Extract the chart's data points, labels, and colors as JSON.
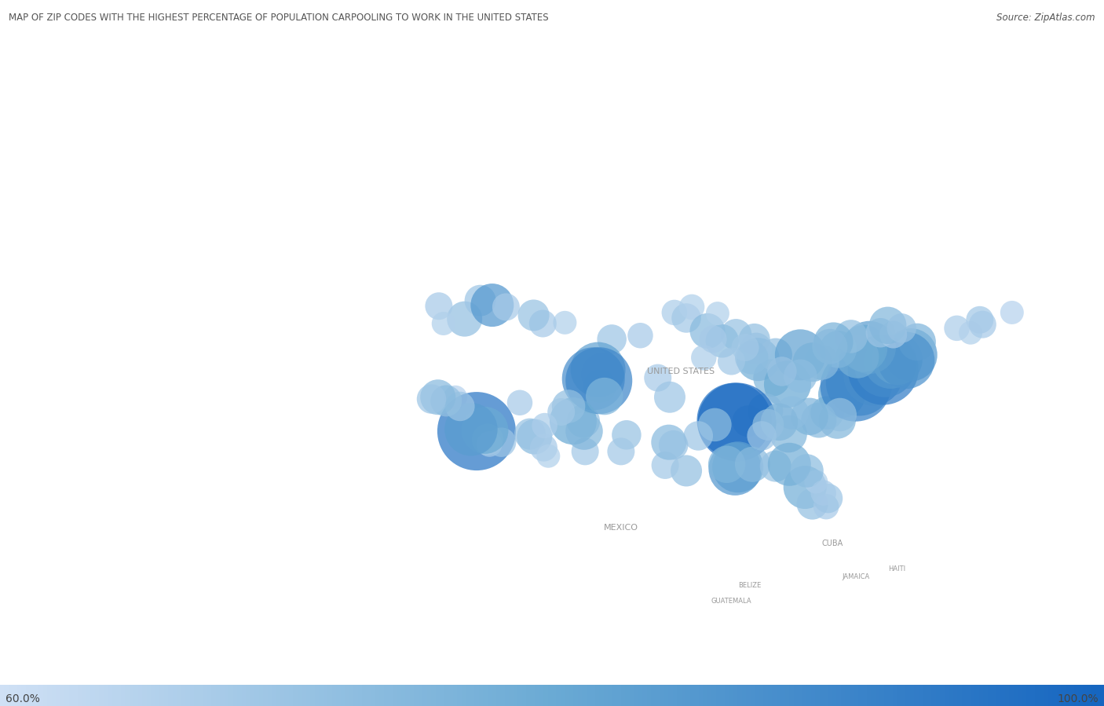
{
  "title": "MAP OF ZIP CODES WITH THE HIGHEST PERCENTAGE OF POPULATION CARPOOLING TO WORK IN THE UNITED STATES",
  "source": "Source: ZipAtlas.com",
  "colorbar_min": "60.0%",
  "colorbar_max": "100.0%",
  "background_color": "#dce5ed",
  "land_color": "#f0f0f0",
  "water_color": "#dce5ed",
  "border_color": "#bbbbbb",
  "title_color": "#555555",
  "label_color": "#999999",
  "colorbar_color_low": "#cfe0f5",
  "colorbar_color_mid": "#6aaad4",
  "colorbar_color_high": "#1565c0",
  "map_extent": [
    -170,
    -50,
    13,
    72
  ],
  "dots": [
    {
      "lon": -119.5,
      "lat": 46.2,
      "pct": 0.72,
      "size": 18
    },
    {
      "lon": -117.8,
      "lat": 48.2,
      "pct": 0.7,
      "size": 16
    },
    {
      "lon": -116.5,
      "lat": 47.7,
      "pct": 0.85,
      "size": 22
    },
    {
      "lon": -115.0,
      "lat": 47.5,
      "pct": 0.68,
      "size": 14
    },
    {
      "lon": -120.5,
      "lat": 37.7,
      "pct": 0.65,
      "size": 12
    },
    {
      "lon": -118.2,
      "lat": 34.0,
      "pct": 0.95,
      "size": 40
    },
    {
      "lon": -117.0,
      "lat": 33.1,
      "pct": 0.72,
      "size": 16
    },
    {
      "lon": -116.8,
      "lat": 32.6,
      "pct": 0.68,
      "size": 13
    },
    {
      "lon": -115.5,
      "lat": 32.8,
      "pct": 0.7,
      "size": 15
    },
    {
      "lon": -111.9,
      "lat": 33.4,
      "pct": 0.74,
      "size": 18
    },
    {
      "lon": -112.4,
      "lat": 33.7,
      "pct": 0.71,
      "size": 16
    },
    {
      "lon": -110.9,
      "lat": 32.2,
      "pct": 0.68,
      "size": 14
    },
    {
      "lon": -106.6,
      "lat": 35.1,
      "pct": 0.72,
      "size": 17
    },
    {
      "lon": -106.4,
      "lat": 31.8,
      "pct": 0.69,
      "size": 14
    },
    {
      "lon": -104.8,
      "lat": 38.9,
      "pct": 0.73,
      "size": 17
    },
    {
      "lon": -103.5,
      "lat": 44.0,
      "pct": 0.7,
      "size": 15
    },
    {
      "lon": -105.0,
      "lat": 40.7,
      "pct": 0.82,
      "size": 28
    },
    {
      "lon": -104.5,
      "lat": 40.2,
      "pct": 0.78,
      "size": 22
    },
    {
      "lon": -105.5,
      "lat": 39.7,
      "pct": 0.88,
      "size": 32
    },
    {
      "lon": -104.9,
      "lat": 39.5,
      "pct": 0.9,
      "size": 34
    },
    {
      "lon": -104.3,
      "lat": 37.8,
      "pct": 0.76,
      "size": 19
    },
    {
      "lon": -98.5,
      "lat": 39.8,
      "pct": 0.68,
      "size": 14
    },
    {
      "lon": -97.2,
      "lat": 37.7,
      "pct": 0.7,
      "size": 16
    },
    {
      "lon": -96.7,
      "lat": 46.9,
      "pct": 0.67,
      "size": 13
    },
    {
      "lon": -95.4,
      "lat": 46.3,
      "pct": 0.69,
      "size": 15
    },
    {
      "lon": -94.8,
      "lat": 47.5,
      "pct": 0.66,
      "size": 13
    },
    {
      "lon": -93.1,
      "lat": 44.9,
      "pct": 0.74,
      "size": 18
    },
    {
      "lon": -90.0,
      "lat": 44.5,
      "pct": 0.71,
      "size": 16
    },
    {
      "lon": -91.5,
      "lat": 43.8,
      "pct": 0.73,
      "size": 17
    },
    {
      "lon": -88.0,
      "lat": 44.0,
      "pct": 0.72,
      "size": 16
    },
    {
      "lon": -87.6,
      "lat": 41.8,
      "pct": 0.78,
      "size": 22
    },
    {
      "lon": -86.1,
      "lat": 39.8,
      "pct": 0.75,
      "size": 19
    },
    {
      "lon": -85.7,
      "lat": 42.3,
      "pct": 0.72,
      "size": 17
    },
    {
      "lon": -84.4,
      "lat": 39.1,
      "pct": 0.8,
      "size": 24
    },
    {
      "lon": -83.0,
      "lat": 42.3,
      "pct": 0.82,
      "size": 26
    },
    {
      "lon": -84.3,
      "lat": 33.7,
      "pct": 0.75,
      "size": 19
    },
    {
      "lon": -82.5,
      "lat": 27.9,
      "pct": 0.78,
      "size": 22
    },
    {
      "lon": -81.7,
      "lat": 26.1,
      "pct": 0.72,
      "size": 16
    },
    {
      "lon": -80.2,
      "lat": 25.8,
      "pct": 0.68,
      "size": 13
    },
    {
      "lon": -80.0,
      "lat": 26.7,
      "pct": 0.7,
      "size": 15
    },
    {
      "lon": -81.3,
      "lat": 28.5,
      "pct": 0.66,
      "size": 12
    },
    {
      "lon": -80.1,
      "lat": 36.0,
      "pct": 0.73,
      "size": 17
    },
    {
      "lon": -79.0,
      "lat": 35.2,
      "pct": 0.75,
      "size": 19
    },
    {
      "lon": -78.5,
      "lat": 38.0,
      "pct": 0.8,
      "size": 24
    },
    {
      "lon": -77.0,
      "lat": 38.9,
      "pct": 0.92,
      "size": 36
    },
    {
      "lon": -76.6,
      "lat": 39.3,
      "pct": 0.9,
      "size": 34
    },
    {
      "lon": -75.1,
      "lat": 40.0,
      "pct": 0.88,
      "size": 30
    },
    {
      "lon": -74.0,
      "lat": 40.7,
      "pct": 0.93,
      "size": 36
    },
    {
      "lon": -73.8,
      "lat": 41.0,
      "pct": 0.89,
      "size": 31
    },
    {
      "lon": -73.2,
      "lat": 41.5,
      "pct": 0.85,
      "size": 27
    },
    {
      "lon": -72.5,
      "lat": 41.8,
      "pct": 0.82,
      "size": 26
    },
    {
      "lon": -71.0,
      "lat": 42.3,
      "pct": 0.84,
      "size": 27
    },
    {
      "lon": -70.3,
      "lat": 43.7,
      "pct": 0.76,
      "size": 19
    },
    {
      "lon": -71.5,
      "lat": 41.7,
      "pct": 0.87,
      "size": 29
    },
    {
      "lon": -75.5,
      "lat": 43.1,
      "pct": 0.83,
      "size": 27
    },
    {
      "lon": -76.1,
      "lat": 43.0,
      "pct": 0.8,
      "size": 24
    },
    {
      "lon": -76.8,
      "lat": 42.1,
      "pct": 0.78,
      "size": 22
    },
    {
      "lon": -78.9,
      "lat": 42.9,
      "pct": 0.76,
      "size": 19
    },
    {
      "lon": -80.7,
      "lat": 41.5,
      "pct": 0.74,
      "size": 18
    },
    {
      "lon": -81.7,
      "lat": 41.5,
      "pct": 0.77,
      "size": 20
    },
    {
      "lon": -83.0,
      "lat": 40.0,
      "pct": 0.73,
      "size": 17
    },
    {
      "lon": -85.0,
      "lat": 40.5,
      "pct": 0.71,
      "size": 15
    },
    {
      "lon": -86.8,
      "lat": 36.2,
      "pct": 0.74,
      "size": 18
    },
    {
      "lon": -88.7,
      "lat": 35.1,
      "pct": 0.72,
      "size": 16
    },
    {
      "lon": -90.2,
      "lat": 35.2,
      "pct": 0.96,
      "size": 38
    },
    {
      "lon": -89.9,
      "lat": 35.0,
      "pct": 0.98,
      "size": 40
    },
    {
      "lon": -90.1,
      "lat": 29.9,
      "pct": 0.85,
      "size": 27
    },
    {
      "lon": -89.8,
      "lat": 30.1,
      "pct": 0.83,
      "size": 26
    },
    {
      "lon": -91.0,
      "lat": 30.4,
      "pct": 0.76,
      "size": 19
    },
    {
      "lon": -92.3,
      "lat": 34.7,
      "pct": 0.73,
      "size": 17
    },
    {
      "lon": -94.1,
      "lat": 33.5,
      "pct": 0.7,
      "size": 15
    },
    {
      "lon": -95.4,
      "lat": 29.7,
      "pct": 0.72,
      "size": 16
    },
    {
      "lon": -97.7,
      "lat": 30.3,
      "pct": 0.69,
      "size": 14
    },
    {
      "lon": -97.3,
      "lat": 32.8,
      "pct": 0.74,
      "size": 18
    },
    {
      "lon": -96.8,
      "lat": 32.5,
      "pct": 0.71,
      "size": 15
    },
    {
      "lon": -100.4,
      "lat": 44.4,
      "pct": 0.68,
      "size": 13
    },
    {
      "lon": -101.9,
      "lat": 33.6,
      "pct": 0.71,
      "size": 15
    },
    {
      "lon": -102.5,
      "lat": 31.8,
      "pct": 0.69,
      "size": 14
    },
    {
      "lon": -108.6,
      "lat": 45.8,
      "pct": 0.66,
      "size": 12
    },
    {
      "lon": -111.0,
      "lat": 45.7,
      "pct": 0.68,
      "size": 14
    },
    {
      "lon": -112.0,
      "lat": 46.6,
      "pct": 0.71,
      "size": 16
    },
    {
      "lon": -113.5,
      "lat": 37.1,
      "pct": 0.68,
      "size": 13
    },
    {
      "lon": -110.4,
      "lat": 31.3,
      "pct": 0.66,
      "size": 12
    },
    {
      "lon": -77.5,
      "lat": 44.3,
      "pct": 0.72,
      "size": 17
    },
    {
      "lon": -74.3,
      "lat": 44.7,
      "pct": 0.7,
      "size": 15
    },
    {
      "lon": -72.9,
      "lat": 44.5,
      "pct": 0.68,
      "size": 14
    },
    {
      "lon": -93.5,
      "lat": 42.0,
      "pct": 0.67,
      "size": 13
    },
    {
      "lon": -87.8,
      "lat": 43.0,
      "pct": 0.71,
      "size": 16
    },
    {
      "lon": -88.3,
      "lat": 42.0,
      "pct": 0.73,
      "size": 17
    },
    {
      "lon": -89.0,
      "lat": 43.1,
      "pct": 0.69,
      "size": 14
    },
    {
      "lon": -78.7,
      "lat": 35.8,
      "pct": 0.72,
      "size": 17
    },
    {
      "lon": -81.0,
      "lat": 35.2,
      "pct": 0.74,
      "size": 18
    },
    {
      "lon": -82.0,
      "lat": 35.6,
      "pct": 0.76,
      "size": 19
    },
    {
      "lon": -83.9,
      "lat": 36.0,
      "pct": 0.73,
      "size": 17
    },
    {
      "lon": -85.3,
      "lat": 35.0,
      "pct": 0.75,
      "size": 19
    },
    {
      "lon": -86.5,
      "lat": 34.7,
      "pct": 0.72,
      "size": 16
    },
    {
      "lon": -87.2,
      "lat": 33.5,
      "pct": 0.7,
      "size": 15
    },
    {
      "lon": -88.2,
      "lat": 30.4,
      "pct": 0.74,
      "size": 18
    },
    {
      "lon": -85.7,
      "lat": 30.2,
      "pct": 0.71,
      "size": 16
    },
    {
      "lon": -84.2,
      "lat": 30.4,
      "pct": 0.78,
      "size": 22
    },
    {
      "lon": -82.3,
      "lat": 29.7,
      "pct": 0.73,
      "size": 17
    },
    {
      "lon": -80.5,
      "lat": 27.3,
      "pct": 0.68,
      "size": 13
    },
    {
      "lon": -107.7,
      "lat": 35.1,
      "pct": 0.8,
      "size": 24
    },
    {
      "lon": -106.5,
      "lat": 34.0,
      "pct": 0.75,
      "size": 19
    },
    {
      "lon": -108.2,
      "lat": 36.7,
      "pct": 0.72,
      "size": 17
    },
    {
      "lon": -109.0,
      "lat": 36.1,
      "pct": 0.69,
      "size": 14
    },
    {
      "lon": -110.8,
      "lat": 34.6,
      "pct": 0.67,
      "size": 13
    },
    {
      "lon": -117.3,
      "lat": 34.1,
      "pct": 0.8,
      "size": 24
    },
    {
      "lon": -118.8,
      "lat": 34.2,
      "pct": 0.84,
      "size": 27
    },
    {
      "lon": -120.0,
      "lat": 36.7,
      "pct": 0.7,
      "size": 15
    },
    {
      "lon": -121.5,
      "lat": 37.3,
      "pct": 0.72,
      "size": 16
    },
    {
      "lon": -122.4,
      "lat": 37.7,
      "pct": 0.74,
      "size": 18
    },
    {
      "lon": -123.1,
      "lat": 37.5,
      "pct": 0.7,
      "size": 15
    },
    {
      "lon": -122.3,
      "lat": 47.6,
      "pct": 0.68,
      "size": 14
    },
    {
      "lon": -121.8,
      "lat": 45.7,
      "pct": 0.66,
      "size": 12
    },
    {
      "lon": -90.5,
      "lat": 41.6,
      "pct": 0.69,
      "size": 14
    },
    {
      "lon": -92.0,
      "lat": 46.8,
      "pct": 0.66,
      "size": 12
    },
    {
      "lon": -92.5,
      "lat": 44.0,
      "pct": 0.68,
      "size": 14
    },
    {
      "lon": -73.5,
      "lat": 45.5,
      "pct": 0.75,
      "size": 19
    },
    {
      "lon": -72.0,
      "lat": 45.2,
      "pct": 0.71,
      "size": 15
    },
    {
      "lon": -63.5,
      "lat": 46.1,
      "pct": 0.69,
      "size": 14
    },
    {
      "lon": -66.0,
      "lat": 45.2,
      "pct": 0.67,
      "size": 13
    },
    {
      "lon": -60.0,
      "lat": 46.9,
      "pct": 0.65,
      "size": 12
    },
    {
      "lon": -64.5,
      "lat": 44.7,
      "pct": 0.66,
      "size": 12
    },
    {
      "lon": -63.2,
      "lat": 45.6,
      "pct": 0.68,
      "size": 14
    },
    {
      "lon": -79.4,
      "lat": 43.7,
      "pct": 0.77,
      "size": 20
    },
    {
      "lon": -79.8,
      "lat": 43.2,
      "pct": 0.74,
      "size": 18
    }
  ],
  "country_labels": [
    {
      "text": "UNITED STATES",
      "lon": -96.0,
      "lat": 40.5,
      "fontsize": 8
    },
    {
      "text": "MEXICO",
      "lon": -102.5,
      "lat": 23.5,
      "fontsize": 8
    },
    {
      "text": "CUBA",
      "lon": -79.5,
      "lat": 21.8,
      "fontsize": 7
    },
    {
      "text": "HAITI",
      "lon": -72.5,
      "lat": 19.0,
      "fontsize": 6
    },
    {
      "text": "JAMAICA",
      "lon": -77.0,
      "lat": 18.2,
      "fontsize": 6
    },
    {
      "text": "BELIZE",
      "lon": -88.5,
      "lat": 17.2,
      "fontsize": 6
    },
    {
      "text": "GUATEMALA",
      "lon": -90.5,
      "lat": 15.5,
      "fontsize": 6
    }
  ]
}
